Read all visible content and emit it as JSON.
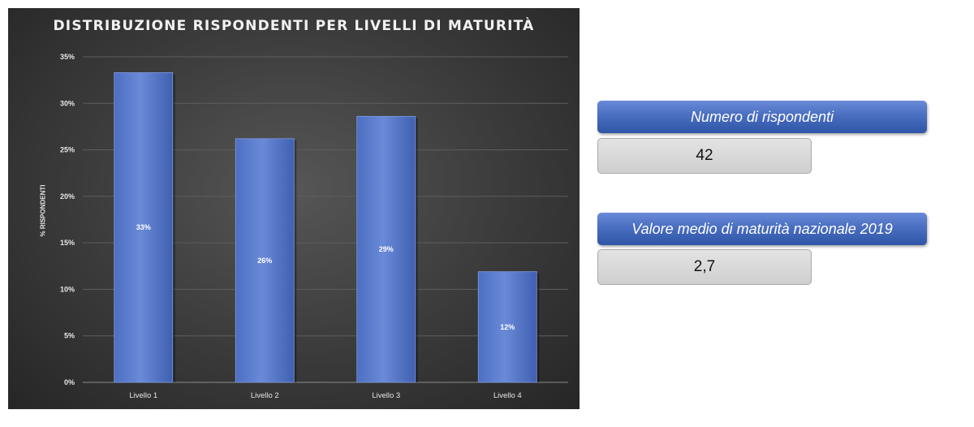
{
  "chart_data": {
    "type": "bar",
    "title": "DISTRIBUZIONE RISPONDENTI PER LIVELLI DI MATURITÀ",
    "ylabel": "% RISPONDENTI",
    "xlabel": "",
    "categories": [
      "Livello 1",
      "Livello 2",
      "Livello 3",
      "Livello 4"
    ],
    "values": [
      33.3,
      26.2,
      28.6,
      11.9
    ],
    "data_labels": [
      "33%",
      "26%",
      "29%",
      "12%"
    ],
    "ylim": [
      0,
      35
    ],
    "yticks": [
      0,
      5,
      10,
      15,
      20,
      25,
      30,
      35
    ],
    "ytick_labels": [
      "0%",
      "5%",
      "10%",
      "15%",
      "20%",
      "25%",
      "30%",
      "35%"
    ],
    "grid": true,
    "legend": "none",
    "colors": {
      "bar": "#5b7fd1",
      "background": "#404040",
      "text": "#ffffff"
    }
  },
  "info": {
    "respondents_label": "Numero di rispondenti",
    "respondents_value": "42",
    "maturity_label": "Valore medio di maturità nazionale 2019",
    "maturity_value": "2,7"
  }
}
